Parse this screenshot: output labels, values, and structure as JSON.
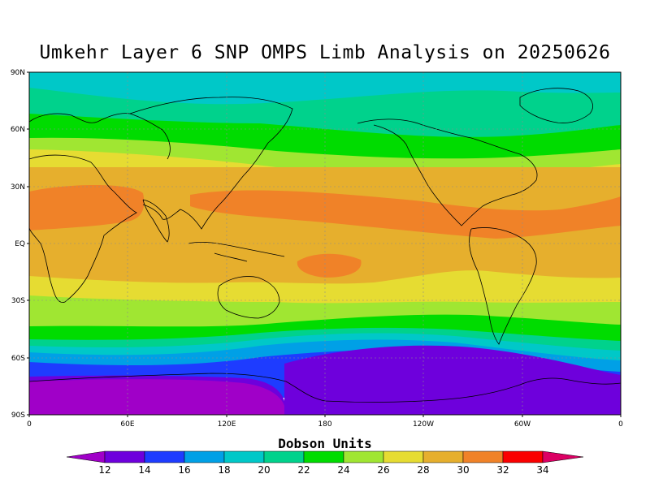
{
  "title": "Umkehr Layer 6 SNP OMPS Limb Analysis on 20250626",
  "legend": {
    "title": "Dobson Units",
    "levels": [
      12,
      14,
      16,
      18,
      20,
      22,
      24,
      26,
      28,
      30,
      32,
      34
    ],
    "colors": [
      "#a000c8",
      "#6e00dc",
      "#1e3cff",
      "#00a0e6",
      "#00c8c8",
      "#00d28c",
      "#00dc00",
      "#a0e632",
      "#e6dc32",
      "#e6af2d",
      "#f08228",
      "#fa0000",
      "#dc0064"
    ]
  },
  "axes": {
    "lat_labels": [
      "90N",
      "60N",
      "30N",
      "EQ",
      "30S",
      "60S",
      "90S"
    ],
    "lon_labels": [
      "0",
      "60E",
      "120E",
      "180",
      "120W",
      "60W",
      "0"
    ]
  },
  "map": {
    "projection": "cylindrical equidistant",
    "lon_range": [
      0,
      360
    ],
    "lat_range": [
      -90,
      90
    ],
    "gridlines": true,
    "coastlines": true
  },
  "chart_data": {
    "type": "heatmap",
    "variable": "Umkehr Layer 6 ozone",
    "units": "Dobson Units",
    "date": "20250626",
    "zonal_profile_approx": [
      {
        "lat": 85,
        "value": 20
      },
      {
        "lat": 70,
        "value": 21
      },
      {
        "lat": 60,
        "value": 23
      },
      {
        "lat": 50,
        "value": 25
      },
      {
        "lat": 40,
        "value": 28
      },
      {
        "lat": 30,
        "value": 29.5
      },
      {
        "lat": 20,
        "value": 30.5
      },
      {
        "lat": 10,
        "value": 30
      },
      {
        "lat": 0,
        "value": 29
      },
      {
        "lat": -10,
        "value": 28.5
      },
      {
        "lat": -20,
        "value": 28
      },
      {
        "lat": -30,
        "value": 26
      },
      {
        "lat": -40,
        "value": 24
      },
      {
        "lat": -50,
        "value": 21
      },
      {
        "lat": -60,
        "value": 17
      },
      {
        "lat": -70,
        "value": 14
      },
      {
        "lat": -80,
        "value": 13
      }
    ]
  }
}
